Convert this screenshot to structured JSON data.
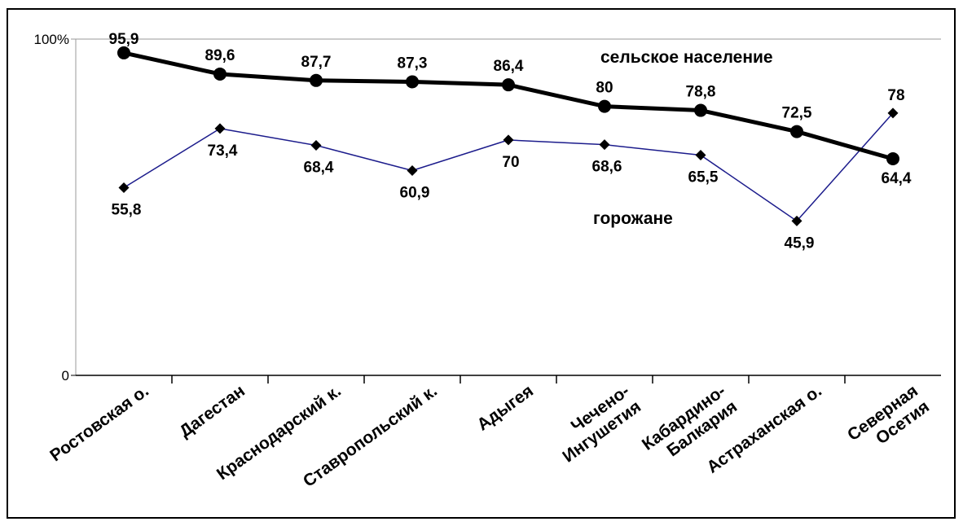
{
  "chart_data": {
    "type": "line",
    "categories": [
      "Ростовская о.",
      "Дагестан",
      "Краснодарский к.",
      "Ставропольский к.",
      "Адыгея",
      "Чечено-Ингушетия",
      "Кабардино-Балкария",
      "Астраханская о.",
      "Северная Осетия"
    ],
    "category_lines": [
      [
        "Ростовская о."
      ],
      [
        "Дагестан"
      ],
      [
        "Краснодарский к."
      ],
      [
        "Ставропольский к."
      ],
      [
        "Адыгея"
      ],
      [
        "Чечено-",
        "Ингушетия"
      ],
      [
        "Кабардино-",
        "Балкария"
      ],
      [
        "Астраханская о."
      ],
      [
        "Северная",
        "Осетия"
      ]
    ],
    "series": [
      {
        "name": "сельское население",
        "values": [
          95.9,
          89.6,
          87.7,
          87.3,
          86.4,
          80,
          78.8,
          72.5,
          64.4
        ],
        "labels": [
          "95,9",
          "89,6",
          "87,7",
          "87,3",
          "86,4",
          "80",
          "78,8",
          "72,5",
          "64,4"
        ],
        "color": "#000000",
        "marker": "circle"
      },
      {
        "name": "горожане",
        "values": [
          55.8,
          73.4,
          68.4,
          60.9,
          70,
          68.6,
          65.5,
          45.9,
          78
        ],
        "labels": [
          "55,8",
          "73,4",
          "68,4",
          "60,9",
          "70",
          "68,6",
          "65,5",
          "45,9",
          "78"
        ],
        "color": "#1c1c8c",
        "marker": "diamond"
      }
    ],
    "y_tick_labels": [
      "0",
      "100%"
    ],
    "ylim": [
      0,
      100
    ],
    "grid": false,
    "legend": "inline"
  }
}
